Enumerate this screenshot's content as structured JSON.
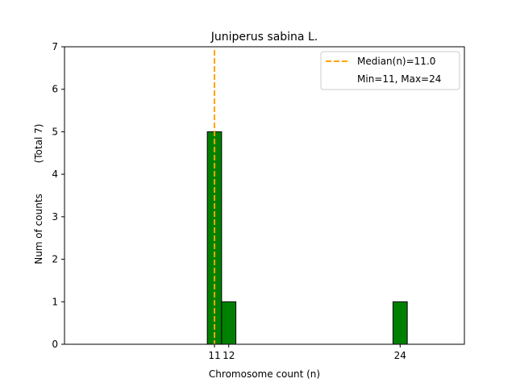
{
  "chart_data": {
    "type": "bar",
    "title": "Juniperus sabina L.",
    "xlabel": "Chromosome count (n)",
    "ylabel": "Num of counts",
    "ylabel_total": "(Total 7)",
    "xlim": [
      0.5,
      28.5
    ],
    "ylim": [
      0,
      7
    ],
    "x_ticks": [
      11,
      12,
      24
    ],
    "y_ticks": [
      0,
      1,
      2,
      3,
      4,
      5,
      6,
      7
    ],
    "bar_width": 1,
    "bars": [
      {
        "x": 11,
        "value": 5
      },
      {
        "x": 12,
        "value": 1
      },
      {
        "x": 24,
        "value": 1
      }
    ],
    "median": 11.0,
    "colors": {
      "bar_fill": "#008000",
      "bar_edge": "#000000",
      "median_line": "#ffa500"
    },
    "legend": {
      "placement": "top-right",
      "median_label": "Median(n)=11.0",
      "range_label": "Min=11, Max=24"
    }
  }
}
